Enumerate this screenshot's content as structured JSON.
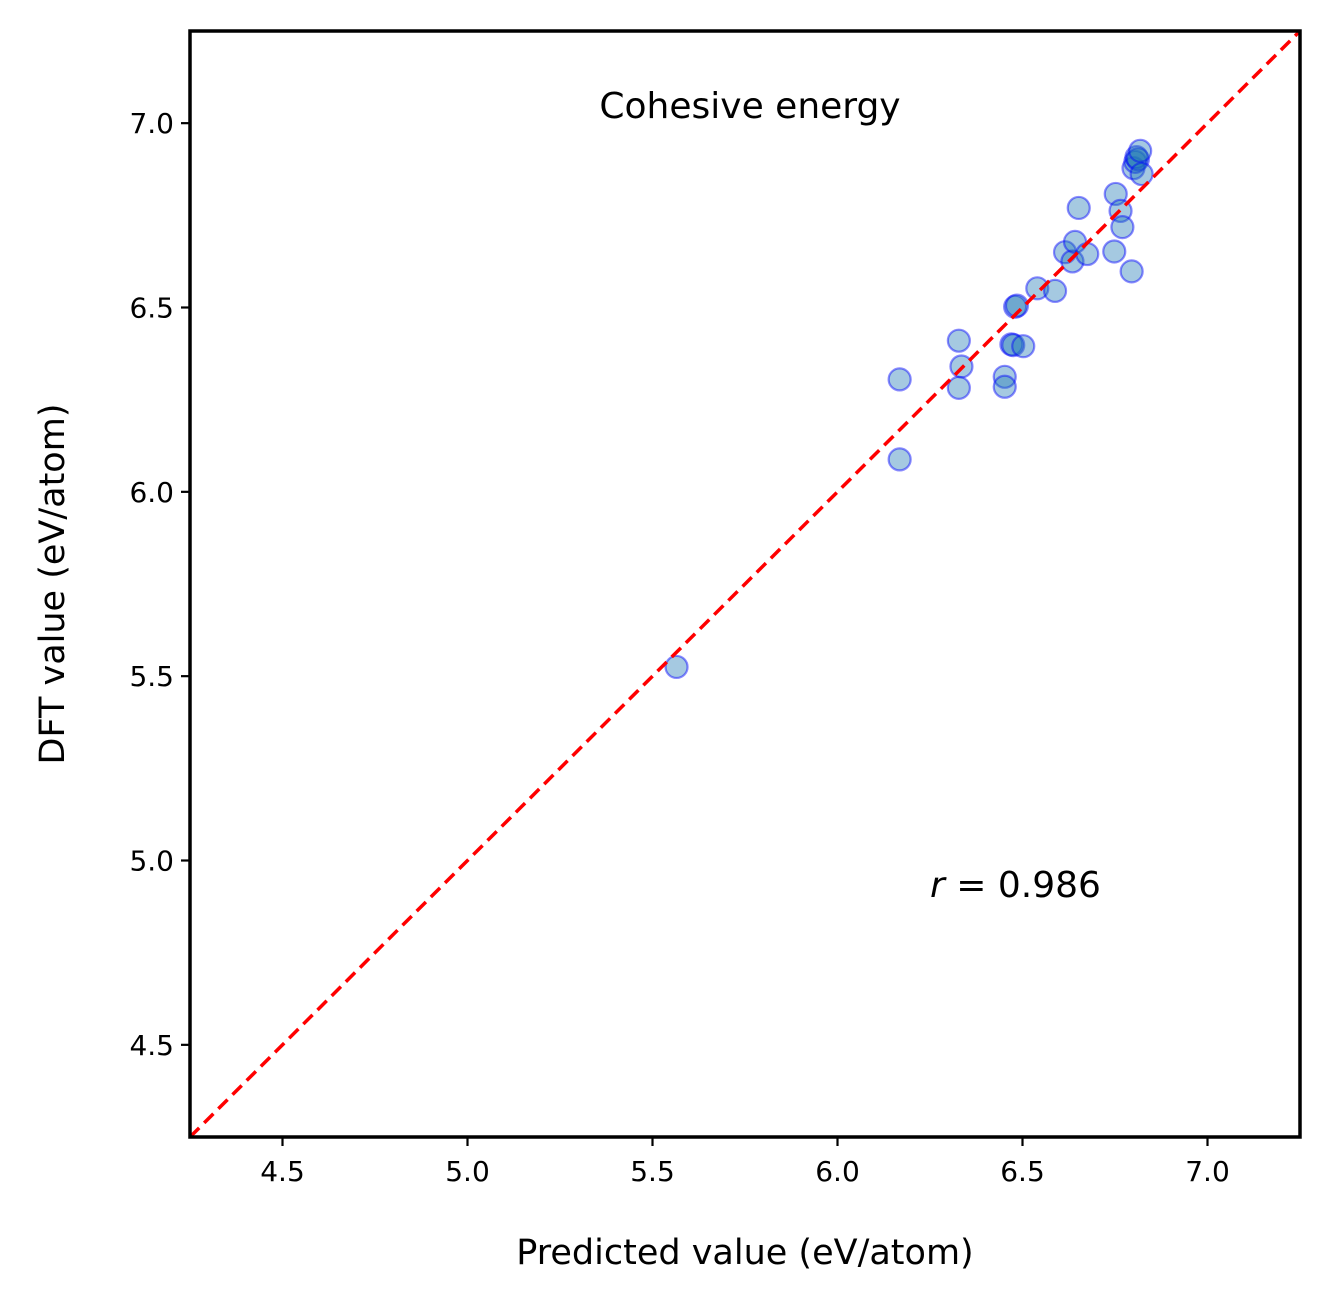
{
  "chart_data": {
    "type": "scatter",
    "title": "",
    "annotations": {
      "top": "Cohesive energy",
      "r_symbol": "r",
      "r_text": " = 0.986"
    },
    "xlabel": "Predicted value (eV/atom)",
    "ylabel": "DFT value (eV/atom)",
    "xlim": [
      4.25,
      7.25
    ],
    "ylim": [
      4.25,
      7.25
    ],
    "xticks": [
      4.5,
      5.0,
      5.5,
      6.0,
      6.5,
      7.0
    ],
    "yticks": [
      4.5,
      5.0,
      5.5,
      6.0,
      6.5,
      7.0
    ],
    "xtick_labels": [
      "4.5",
      "5.0",
      "5.5",
      "6.0",
      "6.5",
      "7.0"
    ],
    "ytick_labels": [
      "4.5",
      "5.0",
      "5.5",
      "6.0",
      "6.5",
      "7.0"
    ],
    "grid": false,
    "reference_line": {
      "from": [
        4.25,
        4.25
      ],
      "to": [
        7.25,
        7.25
      ],
      "color": "#ff0000",
      "style": "dashed"
    },
    "marker_fill": "#1f77b4",
    "marker_edge": "#0000ff",
    "points": [
      {
        "x": 5.565,
        "y": 5.525
      },
      {
        "x": 6.168,
        "y": 6.305
      },
      {
        "x": 6.168,
        "y": 6.088
      },
      {
        "x": 6.328,
        "y": 6.41
      },
      {
        "x": 6.335,
        "y": 6.34
      },
      {
        "x": 6.328,
        "y": 6.282
      },
      {
        "x": 6.452,
        "y": 6.312
      },
      {
        "x": 6.452,
        "y": 6.285
      },
      {
        "x": 6.47,
        "y": 6.4
      },
      {
        "x": 6.475,
        "y": 6.398
      },
      {
        "x": 6.502,
        "y": 6.395
      },
      {
        "x": 6.48,
        "y": 6.502
      },
      {
        "x": 6.485,
        "y": 6.505
      },
      {
        "x": 6.54,
        "y": 6.552
      },
      {
        "x": 6.588,
        "y": 6.545
      },
      {
        "x": 6.615,
        "y": 6.65
      },
      {
        "x": 6.635,
        "y": 6.625
      },
      {
        "x": 6.642,
        "y": 6.678
      },
      {
        "x": 6.652,
        "y": 6.77
      },
      {
        "x": 6.675,
        "y": 6.645
      },
      {
        "x": 6.748,
        "y": 6.652
      },
      {
        "x": 6.752,
        "y": 6.808
      },
      {
        "x": 6.765,
        "y": 6.762
      },
      {
        "x": 6.77,
        "y": 6.718
      },
      {
        "x": 6.795,
        "y": 6.598
      },
      {
        "x": 6.8,
        "y": 6.878
      },
      {
        "x": 6.805,
        "y": 6.895
      },
      {
        "x": 6.808,
        "y": 6.908
      },
      {
        "x": 6.812,
        "y": 6.902
      },
      {
        "x": 6.818,
        "y": 6.925
      },
      {
        "x": 6.822,
        "y": 6.862
      }
    ]
  }
}
